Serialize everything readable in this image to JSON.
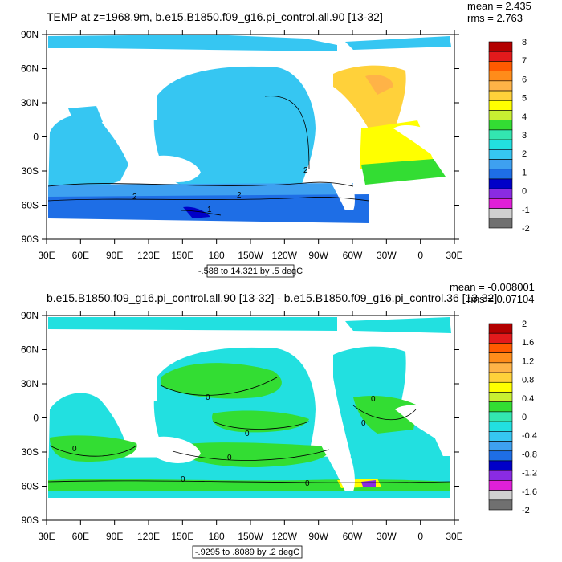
{
  "chart_data": [
    {
      "type": "heatmap",
      "title": "TEMP at z=1968.9m, b.e15.B1850.f09_g16.pi_control.all.90 [13-32]",
      "stats": {
        "mean": "mean = 2.435",
        "rms": "rms = 2.763"
      },
      "x_ticks": [
        "30E",
        "60E",
        "90E",
        "120E",
        "150E",
        "180",
        "150W",
        "120W",
        "90W",
        "60W",
        "30W",
        "0",
        "30E"
      ],
      "y_ticks": [
        "90N",
        "60N",
        "30N",
        "0",
        "30S",
        "60S",
        "90S"
      ],
      "contour_info": "-.588 to 14.321 by .5 degC",
      "contour_labels": [
        "2",
        "2",
        "2",
        "1"
      ],
      "colorbar": {
        "labels": [
          "8",
          "7",
          "6",
          "5",
          "4",
          "3",
          "2",
          "1",
          "0",
          "-1",
          "-2"
        ],
        "colors": [
          "#b30000",
          "#e31a1c",
          "#ff5a00",
          "#ff8c1a",
          "#ffb347",
          "#ffd13a",
          "#ffff00",
          "#c8f032",
          "#33dd33",
          "#33e6b0",
          "#22e0e0",
          "#36c6f2",
          "#3ea0f0",
          "#1e6ee6",
          "#0000c8",
          "#8a2be2",
          "#e020d8",
          "#d0d0d0",
          "#707070"
        ]
      }
    },
    {
      "type": "heatmap",
      "title": "b.e15.B1850.f09_g16.pi_control.all.90 [13-32] - b.e15.B1850.f09_g16.pi_control.36 [13-32]",
      "stats": {
        "mean": "mean = -0.008001",
        "rms": "rms = 0.07104"
      },
      "x_ticks": [
        "30E",
        "60E",
        "90E",
        "120E",
        "150E",
        "180",
        "150W",
        "120W",
        "90W",
        "60W",
        "30W",
        "0",
        "30E"
      ],
      "y_ticks": [
        "90N",
        "60N",
        "30N",
        "0",
        "30S",
        "60S",
        "90S"
      ],
      "contour_info": "-.9295 to .8089 by .2 degC",
      "contour_labels": [
        "0",
        "0",
        "0",
        "0",
        "0",
        "0",
        "0",
        "0"
      ],
      "colorbar": {
        "labels": [
          "2",
          "1.6",
          "1.2",
          "0.8",
          "0.4",
          "0",
          "-0.4",
          "-0.8",
          "-1.2",
          "-1.6",
          "-2"
        ],
        "colors": [
          "#b30000",
          "#e31a1c",
          "#ff5a00",
          "#ff8c1a",
          "#ffb347",
          "#ffd13a",
          "#ffff00",
          "#c8f032",
          "#33dd33",
          "#33e6b0",
          "#22e0e0",
          "#36c6f2",
          "#3ea0f0",
          "#1e6ee6",
          "#0000c8",
          "#8a2be2",
          "#e020d8",
          "#d0d0d0",
          "#707070"
        ]
      }
    }
  ],
  "palette": {
    "ocean_cyan": "#22e0e0",
    "ocean_sky": "#36c6f2",
    "ocean_blue": "#3ea0f0",
    "deep_blue": "#1e6ee6",
    "navy": "#0000c8",
    "green": "#33dd33",
    "yellow": "#ffff00",
    "gold": "#ffd13a",
    "orange": "#ffb347",
    "red": "#e31a1c",
    "land": "#ffffff"
  }
}
